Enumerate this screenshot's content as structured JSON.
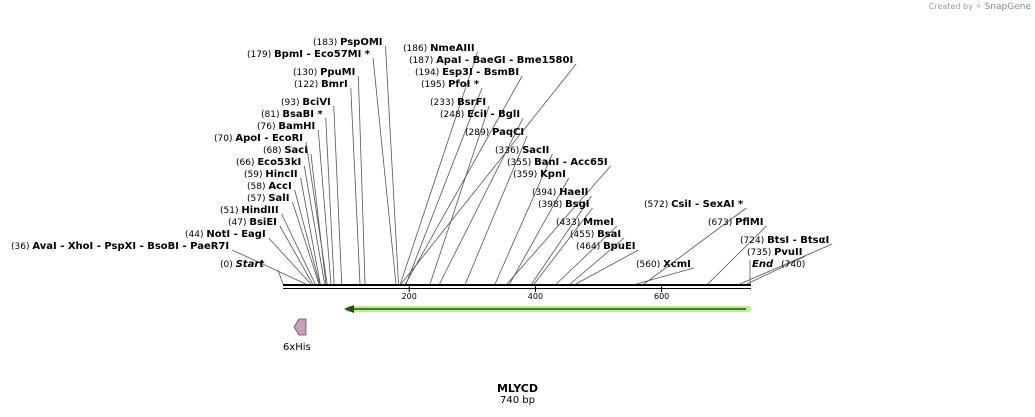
{
  "credit": {
    "prefix": "Created by",
    "brand": "SnapGene"
  },
  "sequence": {
    "name": "MLYCD",
    "length_label": "740 bp",
    "length": 740
  },
  "colors": {
    "backbone": "#000000",
    "orf_arrow": "#2a4a1a",
    "orf_glow": "#b9f08a",
    "feature_fill": "#c9a0b8",
    "feature_stroke": "#7a4a66",
    "tick_line": "#555555"
  },
  "feature": {
    "name": "6xHis",
    "icon": "pentagon-arrow-icon"
  },
  "orf": {
    "direction": "reverse"
  },
  "ruler": [
    {
      "value": 200,
      "label": "200"
    },
    {
      "value": 400,
      "label": "400"
    },
    {
      "value": 600,
      "label": "600"
    }
  ],
  "sites": [
    {
      "names": [
        "AvaI",
        "XhoI",
        "PspXI",
        "BsoBI",
        "PaeR7I"
      ],
      "pos": "(36)",
      "bp": 36
    },
    {
      "names": [
        "NotI",
        "EagI"
      ],
      "pos": "(44)",
      "bp": 44
    },
    {
      "names": [
        "BsiEI"
      ],
      "pos": "(47)",
      "bp": 47
    },
    {
      "names": [
        "HindIII"
      ],
      "pos": "(51)",
      "bp": 51
    },
    {
      "names": [
        "SalI"
      ],
      "pos": "(57)",
      "bp": 57
    },
    {
      "names": [
        "AccI"
      ],
      "pos": "(58)",
      "bp": 58
    },
    {
      "names": [
        "HincII"
      ],
      "pos": "(59)",
      "bp": 59
    },
    {
      "names": [
        "Eco53kI"
      ],
      "pos": "(66)",
      "bp": 66
    },
    {
      "names": [
        "SacI"
      ],
      "pos": "(68)",
      "bp": 68
    },
    {
      "names": [
        "ApoI",
        "EcoRI"
      ],
      "pos": "(70)",
      "bp": 70
    },
    {
      "names": [
        "BamHI"
      ],
      "pos": "(76)",
      "bp": 76
    },
    {
      "names": [
        "BsaBI *"
      ],
      "pos": "(81)",
      "bp": 81
    },
    {
      "names": [
        "BciVI"
      ],
      "pos": "(93)",
      "bp": 93
    },
    {
      "names": [
        "BmrI"
      ],
      "pos": "(122)",
      "bp": 122
    },
    {
      "names": [
        "PpuMI"
      ],
      "pos": "(130)",
      "bp": 130
    },
    {
      "names": [
        "BpmI",
        "Eco57MI *"
      ],
      "pos": "(179)",
      "bp": 179
    },
    {
      "names": [
        "PspOMI"
      ],
      "pos": "(183)",
      "bp": 183
    },
    {
      "names": [
        "NmeAIII"
      ],
      "pos": "(186)",
      "bp": 186
    },
    {
      "names": [
        "ApaI",
        "BaeGI",
        "Bme1580I"
      ],
      "pos": "(187)",
      "bp": 187
    },
    {
      "names": [
        "Esp3I",
        "BsmBI"
      ],
      "pos": "(194)",
      "bp": 194
    },
    {
      "names": [
        "PfoI *"
      ],
      "pos": "(195)",
      "bp": 195
    },
    {
      "names": [
        "BsrFI"
      ],
      "pos": "(233)",
      "bp": 233
    },
    {
      "names": [
        "EciI",
        "BglI"
      ],
      "pos": "(248)",
      "bp": 248
    },
    {
      "names": [
        "PaqCI"
      ],
      "pos": "(289)",
      "bp": 289
    },
    {
      "names": [
        "SacII"
      ],
      "pos": "(336)",
      "bp": 336
    },
    {
      "names": [
        "BanI",
        "Acc65I"
      ],
      "pos": "(355)",
      "bp": 355
    },
    {
      "names": [
        "KpnI"
      ],
      "pos": "(359)",
      "bp": 359
    },
    {
      "names": [
        "HaeII"
      ],
      "pos": "(394)",
      "bp": 394
    },
    {
      "names": [
        "BsgI"
      ],
      "pos": "(398)",
      "bp": 398
    },
    {
      "names": [
        "MmeI"
      ],
      "pos": "(433)",
      "bp": 433
    },
    {
      "names": [
        "BsaI"
      ],
      "pos": "(455)",
      "bp": 455
    },
    {
      "names": [
        "BpuEI"
      ],
      "pos": "(464)",
      "bp": 464
    },
    {
      "names": [
        "XcmI"
      ],
      "pos": "(560)",
      "bp": 560
    },
    {
      "names": [
        "CsiI",
        "SexAI *"
      ],
      "pos": "(572)",
      "bp": 572
    },
    {
      "names": [
        "PflMI"
      ],
      "pos": "(673)",
      "bp": 673
    },
    {
      "names": [
        "BtsI",
        "BtsαI"
      ],
      "pos": "(724)",
      "bp": 724
    },
    {
      "names": [
        "PvuII"
      ],
      "pos": "(735)",
      "bp": 735
    }
  ],
  "ends": {
    "start": {
      "name": "Start",
      "pos": "(0)",
      "bp": 0
    },
    "end": {
      "name": "End",
      "pos": "(740)",
      "bp": 740
    }
  }
}
